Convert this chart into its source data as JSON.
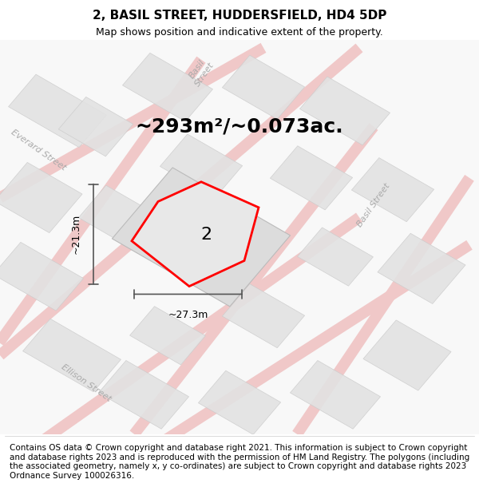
{
  "title_line1": "2, BASIL STREET, HUDDERSFIELD, HD4 5DP",
  "title_line2": "Map shows position and indicative extent of the property.",
  "area_text": "~293m²/~0.073ac.",
  "property_number": "2",
  "width_label": "~27.3m",
  "height_label": "~21.3m",
  "footer_text": "Contains OS data © Crown copyright and database right 2021. This information is subject to Crown copyright and database rights 2023 and is reproduced with the permission of HM Land Registry. The polygons (including the associated geometry, namely x, y co-ordinates) are subject to Crown copyright and database rights 2023 Ordnance Survey 100026316.",
  "bg_color": "#ffffff",
  "map_bg_color": "#f5f5f5",
  "road_color_light": "#f5c0c0",
  "road_color_dark": "#e08080",
  "block_color": "#e0e0e0",
  "block_edge_color": "#cccccc",
  "highlight_block_color": "#d8d8d8",
  "property_fill": "#e8e8e8",
  "property_edge_color": "#ff0000",
  "street_label_color": "#aaaaaa",
  "dim_line_color": "#555555",
  "title_fontsize": 11,
  "subtitle_fontsize": 9,
  "area_fontsize": 18,
  "footer_fontsize": 7.5
}
